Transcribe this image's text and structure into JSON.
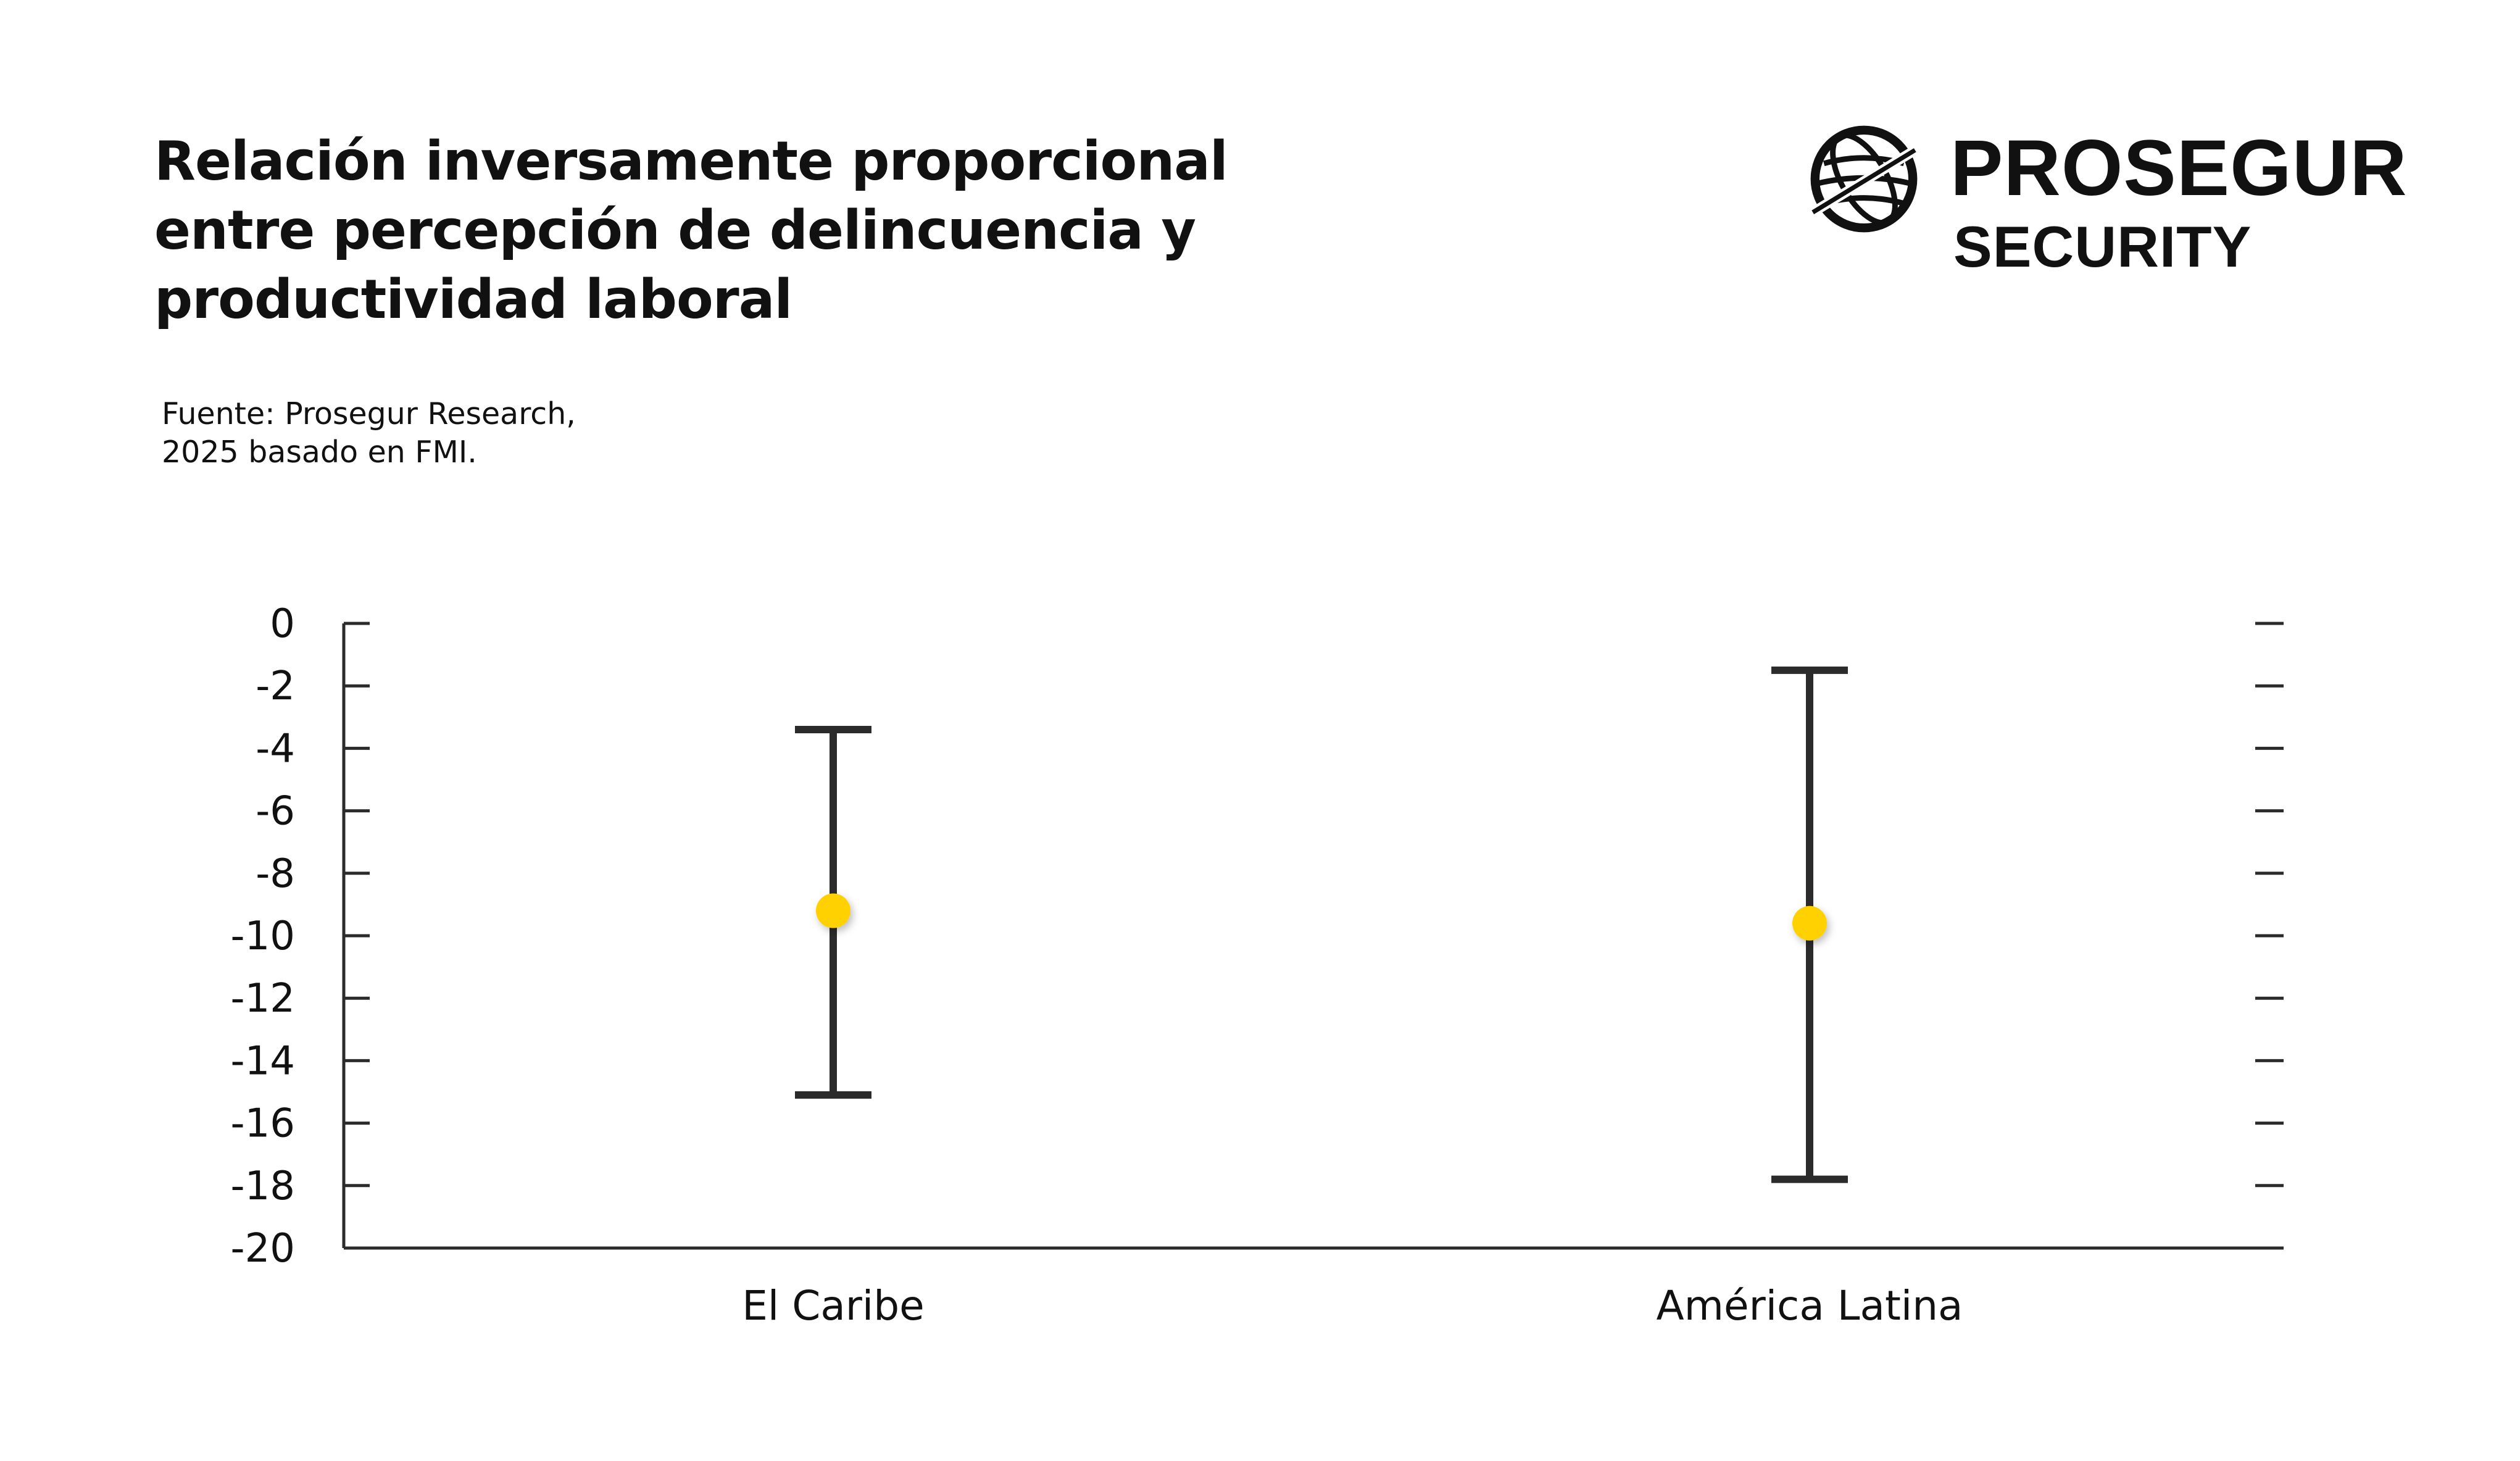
{
  "title_lines": [
    "Relación inversamente proporcional",
    "entre percepción de delincuencia y",
    "productividad laboral"
  ],
  "source_lines": [
    "Fuente: Prosegur Research,",
    "2025 basado en FMI."
  ],
  "logo": {
    "icon": "globe-icon",
    "brand": "PROSEGUR",
    "sub": "SECURITY"
  },
  "colors": {
    "point": "#FFD100",
    "line": "#2b2b2b",
    "axis": "#2b2b2b",
    "text": "#111111"
  },
  "chart_data": {
    "type": "scatter",
    "subtype": "error-bar",
    "title": "Relación inversamente proporcional entre percepción de delincuencia y productividad laboral",
    "xlabel": "",
    "ylabel": "",
    "ylim": [
      -20,
      0
    ],
    "yticks": [
      "0",
      "-2",
      "-4",
      "-6",
      "-8",
      "-10",
      "-12",
      "-14",
      "-16",
      "-18",
      "-20"
    ],
    "categories": [
      "El Caribe",
      "América Latina"
    ],
    "values": [
      -9.2,
      -9.6
    ],
    "lower": [
      -15.1,
      -17.8
    ],
    "upper": [
      -3.4,
      -1.5
    ],
    "grid": false,
    "legend": "none"
  }
}
